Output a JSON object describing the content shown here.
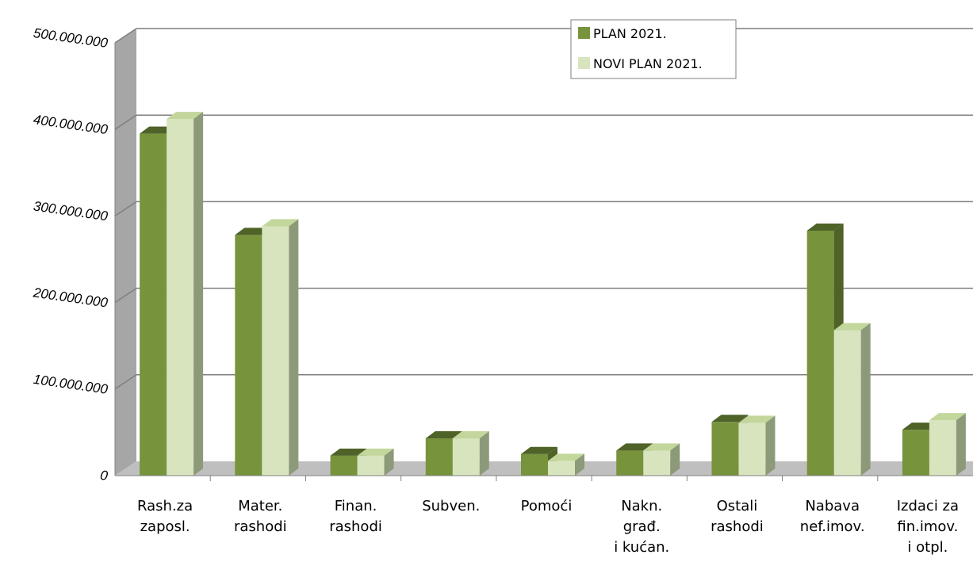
{
  "chart_data": {
    "type": "bar",
    "title": "",
    "xlabel": "",
    "ylabel": "",
    "ylim": [
      0,
      500000000
    ],
    "yticks": [
      0,
      100000000,
      200000000,
      300000000,
      400000000,
      500000000
    ],
    "ytick_labels": [
      "0",
      "100.000.000",
      "200.000.000",
      "300.000.000",
      "400.000.000",
      "500.000.000"
    ],
    "categories": [
      [
        "Rash.za",
        "zaposl."
      ],
      [
        "Mater.",
        "rashodi"
      ],
      [
        "Finan.",
        "rashodi"
      ],
      [
        "Subven."
      ],
      [
        "Pomoći"
      ],
      [
        "Nakn.",
        "građ.",
        "i kućan."
      ],
      [
        "Ostali",
        "rashodi"
      ],
      [
        "Nabava",
        "nef.imov."
      ],
      [
        "Izdaci za",
        "fin.imov.",
        "i otpl."
      ]
    ],
    "series": [
      {
        "name": "PLAN 2021.",
        "values": [
          395000000,
          278000000,
          23000000,
          43000000,
          25000000,
          29000000,
          62000000,
          283000000,
          53000000
        ]
      },
      {
        "name": "NOVI PLAN 2021.",
        "values": [
          412000000,
          288000000,
          23000000,
          43000000,
          17000000,
          29000000,
          61000000,
          168000000,
          64000000
        ]
      }
    ],
    "grid": true,
    "legend_position": "top-right",
    "colors": {
      "series": [
        "#77933c",
        "#d7e4bd"
      ],
      "series_top": [
        "#4f6228",
        "#c3d69b"
      ],
      "series_side": [
        "#4f6228",
        "#8c9a7a"
      ],
      "wall": "#a6a6a6",
      "floor": "#bfbfbf",
      "grid": "#7f7f7f"
    }
  }
}
